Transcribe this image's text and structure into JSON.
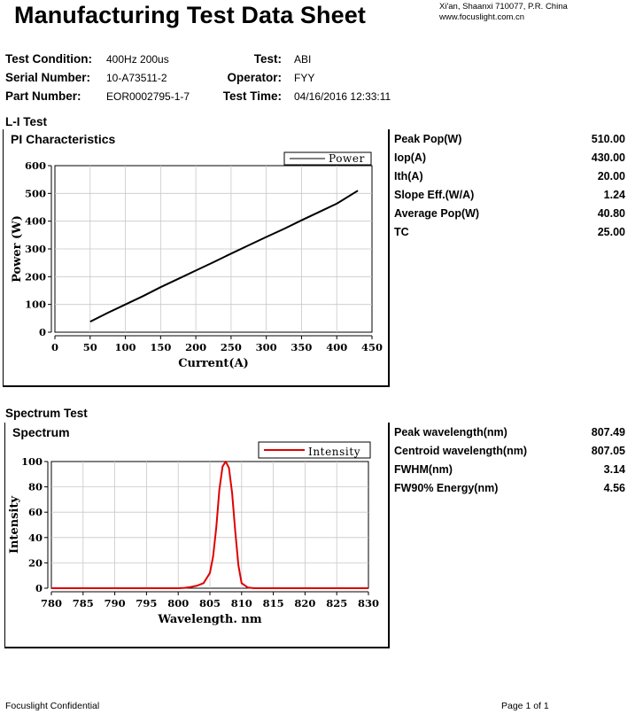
{
  "header": {
    "title": "Manufacturing Test Data Sheet",
    "address_line1": "Xi'an, Shaanxi 710077,  P.R.  China",
    "address_line2": "www.focuslight.com.cn"
  },
  "info": {
    "test_condition_label": "Test Condition:",
    "test_condition_value": "400Hz 200us",
    "serial_label": "Serial Number:",
    "serial_value": "10-A73511-2",
    "part_label": "Part Number:",
    "part_value": "EOR0002795-1-7",
    "test_label": "Test:",
    "test_value": "ABI",
    "operator_label": "Operator:",
    "operator_value": "FYY",
    "time_label": "Test Time:",
    "time_value": "04/16/2016 12:33:11"
  },
  "li_section": {
    "heading": "L-I Test",
    "panel_title": "PI Characteristics",
    "stats": [
      {
        "label": "Peak Pop(W)",
        "value": "510.00"
      },
      {
        "label": "Iop(A)",
        "value": "430.00"
      },
      {
        "label": "Ith(A)",
        "value": "20.00"
      },
      {
        "label": "Slope Eff.(W/A)",
        "value": "1.24"
      },
      {
        "label": "Average Pop(W)",
        "value": "40.80"
      },
      {
        "label": "TC",
        "value": "25.00"
      }
    ]
  },
  "spectrum_section": {
    "heading": "Spectrum Test",
    "panel_title": "Spectrum",
    "stats": [
      {
        "label": "Peak wavelength(nm)",
        "value": "807.49"
      },
      {
        "label": "Centroid wavelength(nm)",
        "value": "807.05"
      },
      {
        "label": "FWHM(nm)",
        "value": "3.14"
      },
      {
        "label": "FW90% Energy(nm)",
        "value": "4.56"
      }
    ]
  },
  "footer": {
    "left": "Focuslight Confidential",
    "right": "Page 1 of 1"
  },
  "chart_data": [
    {
      "type": "line",
      "xlabel": "Current(A)",
      "ylabel": "Power (W)",
      "xlim": [
        0,
        450
      ],
      "ylim": [
        0,
        600
      ],
      "x_ticks": [
        0,
        50,
        100,
        150,
        200,
        250,
        300,
        350,
        400,
        450
      ],
      "y_ticks": [
        0,
        100,
        200,
        300,
        400,
        500,
        600
      ],
      "grid": true,
      "legend": "top-right",
      "series": [
        {
          "name": "Power",
          "color": "#000000",
          "x": [
            50,
            75,
            100,
            125,
            150,
            175,
            200,
            225,
            250,
            275,
            300,
            325,
            350,
            375,
            400,
            430
          ],
          "y": [
            38,
            70,
            100,
            130,
            162,
            192,
            222,
            252,
            283,
            313,
            343,
            372,
            403,
            433,
            463,
            510
          ]
        }
      ]
    },
    {
      "type": "line",
      "xlabel": "Wavelength. nm",
      "ylabel": "Intensity",
      "xlim": [
        780,
        830
      ],
      "ylim": [
        0,
        100
      ],
      "x_ticks": [
        780,
        785,
        790,
        795,
        800,
        805,
        810,
        815,
        820,
        825,
        830
      ],
      "y_ticks": [
        0,
        20,
        40,
        60,
        80,
        100
      ],
      "grid": true,
      "legend": "top-right",
      "series": [
        {
          "name": "Intensity",
          "color": "#e00000",
          "x": [
            780,
            800,
            801,
            802,
            803,
            804,
            805,
            805.5,
            806,
            806.5,
            807,
            807.49,
            808,
            808.5,
            809,
            809.5,
            810,
            811,
            812,
            830
          ],
          "y": [
            0,
            0,
            0.3,
            1,
            2,
            4,
            12,
            25,
            48,
            78,
            96,
            100,
            95,
            75,
            45,
            18,
            4,
            0.5,
            0,
            0
          ]
        }
      ]
    }
  ]
}
